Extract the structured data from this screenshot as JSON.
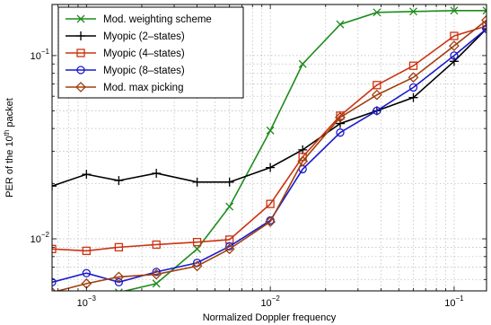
{
  "chart_data": {
    "type": "line",
    "xscale": "log",
    "yscale": "log",
    "xlim": [
      0.00065,
      0.15
    ],
    "ylim": [
      0.0052,
      0.19
    ],
    "xlabel": "Normalized Doppler frequency",
    "ylabel_prefix": "PER of the 10",
    "ylabel_sup": "th",
    "ylabel_suffix": " packet",
    "grid": true,
    "legend_position": "top-left",
    "x_tick_labels": [
      {
        "value": 0.001,
        "base": "10",
        "exp": "−3"
      },
      {
        "value": 0.01,
        "base": "10",
        "exp": "−2"
      },
      {
        "value": 0.1,
        "base": "10",
        "exp": "−1"
      }
    ],
    "y_tick_labels": [
      {
        "value": 0.01,
        "base": "10",
        "exp": "−2"
      },
      {
        "value": 0.1,
        "base": "10",
        "exp": "−1"
      }
    ],
    "x": [
      0.00065,
      0.001,
      0.0015,
      0.0024,
      0.004,
      0.006,
      0.01,
      0.015,
      0.024,
      0.038,
      0.06,
      0.1,
      0.15
    ],
    "series": [
      {
        "name": "Mod. weighting scheme",
        "color": "#1e8c1e",
        "marker": "x",
        "values": [
          0.0048,
          0.005,
          0.0051,
          0.0057,
          0.0088,
          0.015,
          0.039,
          0.09,
          0.148,
          0.172,
          0.174,
          0.176,
          0.176
        ]
      },
      {
        "name": "Myopic (2–states)",
        "color": "#000000",
        "marker": "plus",
        "values": [
          0.0194,
          0.0225,
          0.0208,
          0.0228,
          0.0204,
          0.0204,
          0.0245,
          0.0306,
          0.0426,
          0.05,
          0.059,
          0.093,
          0.14
        ]
      },
      {
        "name": "Myopic (4–states)",
        "color": "#cc3311",
        "marker": "square",
        "values": [
          0.0088,
          0.0086,
          0.009,
          0.0093,
          0.0096,
          0.0099,
          0.0155,
          0.028,
          0.047,
          0.069,
          0.088,
          0.128,
          0.145
        ]
      },
      {
        "name": "Myopic (8–states)",
        "color": "#1a1acc",
        "marker": "circle",
        "values": [
          0.0058,
          0.0065,
          0.0058,
          0.0066,
          0.0074,
          0.0091,
          0.0126,
          0.024,
          0.038,
          0.05,
          0.067,
          0.1,
          0.14
        ]
      },
      {
        "name": "Mod. max picking",
        "color": "#a04010",
        "marker": "diamond",
        "values": [
          0.0051,
          0.0057,
          0.0062,
          0.0064,
          0.0071,
          0.0088,
          0.0124,
          0.0265,
          0.046,
          0.061,
          0.076,
          0.113,
          0.156
        ]
      }
    ]
  }
}
